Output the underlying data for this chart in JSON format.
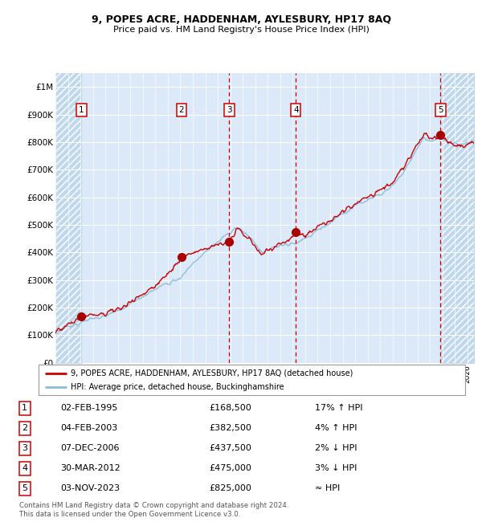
{
  "title1": "9, POPES ACRE, HADDENHAM, AYLESBURY, HP17 8AQ",
  "title2": "Price paid vs. HM Land Registry's House Price Index (HPI)",
  "ylim": [
    0,
    1050000
  ],
  "yticks": [
    0,
    100000,
    200000,
    300000,
    400000,
    500000,
    600000,
    700000,
    800000,
    900000,
    1000000
  ],
  "ytick_labels": [
    "£0",
    "£100K",
    "£200K",
    "£300K",
    "£400K",
    "£500K",
    "£600K",
    "£700K",
    "£800K",
    "£900K",
    "£1M"
  ],
  "xlim_start": 1993.0,
  "xlim_end": 2026.5,
  "sale_dates_x": [
    1995.09,
    2003.09,
    2006.92,
    2012.25,
    2023.84
  ],
  "sale_prices_y": [
    168500,
    382500,
    437500,
    475000,
    825000
  ],
  "sale_labels": [
    "1",
    "2",
    "3",
    "4",
    "5"
  ],
  "vline_dates": [
    2006.92,
    2012.25,
    2023.84
  ],
  "hatch_left_end": 1995.09,
  "hatch_right_start": 2023.84,
  "background_color": "#dce9f8",
  "hatch_fill_color": "#c0d8ee",
  "grid_color": "#ffffff",
  "red_line_color": "#cc0000",
  "blue_line_color": "#8bbcda",
  "dot_color": "#aa0000",
  "legend_line1": "9, POPES ACRE, HADDENHAM, AYLESBURY, HP17 8AQ (detached house)",
  "legend_line2": "HPI: Average price, detached house, Buckinghamshire",
  "table_rows": [
    {
      "num": "1",
      "date": "02-FEB-1995",
      "price": "£168,500",
      "hpi": "17% ↑ HPI"
    },
    {
      "num": "2",
      "date": "04-FEB-2003",
      "price": "£382,500",
      "hpi": "4% ↑ HPI"
    },
    {
      "num": "3",
      "date": "07-DEC-2006",
      "price": "£437,500",
      "hpi": "2% ↓ HPI"
    },
    {
      "num": "4",
      "date": "30-MAR-2012",
      "price": "£475,000",
      "hpi": "3% ↓ HPI"
    },
    {
      "num": "5",
      "date": "03-NOV-2023",
      "price": "£825,000",
      "hpi": "≈ HPI"
    }
  ],
  "footer": "Contains HM Land Registry data © Crown copyright and database right 2024.\nThis data is licensed under the Open Government Licence v3.0."
}
